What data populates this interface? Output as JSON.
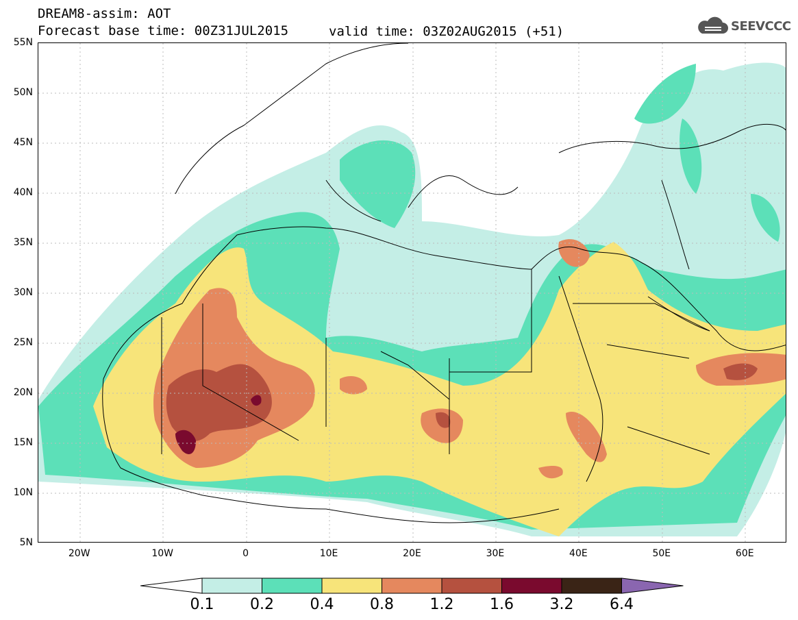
{
  "header": {
    "title_line1": "DREAM8-assim: AOT",
    "title_line2": "Forecast base time: 00Z31JUL2015",
    "valid_time": "valid time: 03Z02AUG2015 (+51)",
    "logo_text": "SEEVCCC"
  },
  "axes": {
    "lat_labels": [
      "55N",
      "50N",
      "45N",
      "40N",
      "35N",
      "30N",
      "25N",
      "20N",
      "15N",
      "10N",
      "5N"
    ],
    "lon_labels": [
      "20W",
      "10W",
      "0",
      "10E",
      "20E",
      "30E",
      "40E",
      "50E",
      "60E"
    ],
    "lat_range": [
      5,
      55
    ],
    "lon_range": [
      -25,
      65
    ]
  },
  "colorbar": {
    "labels": [
      "0.1",
      "0.2",
      "0.4",
      "0.8",
      "1.2",
      "1.6",
      "3.2",
      "6.4"
    ],
    "colors": [
      "#ffffff",
      "#c4eee6",
      "#5ce0b8",
      "#f7e47a",
      "#e5885e",
      "#b5513f",
      "#7a0a2e",
      "#3a2416",
      "#8a66b0"
    ]
  },
  "legend_levels": {
    "level_0": "#ffffff",
    "level_1": "#c4eee6",
    "level_2": "#5ce0b8",
    "level_3": "#f7e47a",
    "level_4": "#e5885e",
    "level_5": "#b5513f",
    "level_6": "#7a0a2e"
  }
}
